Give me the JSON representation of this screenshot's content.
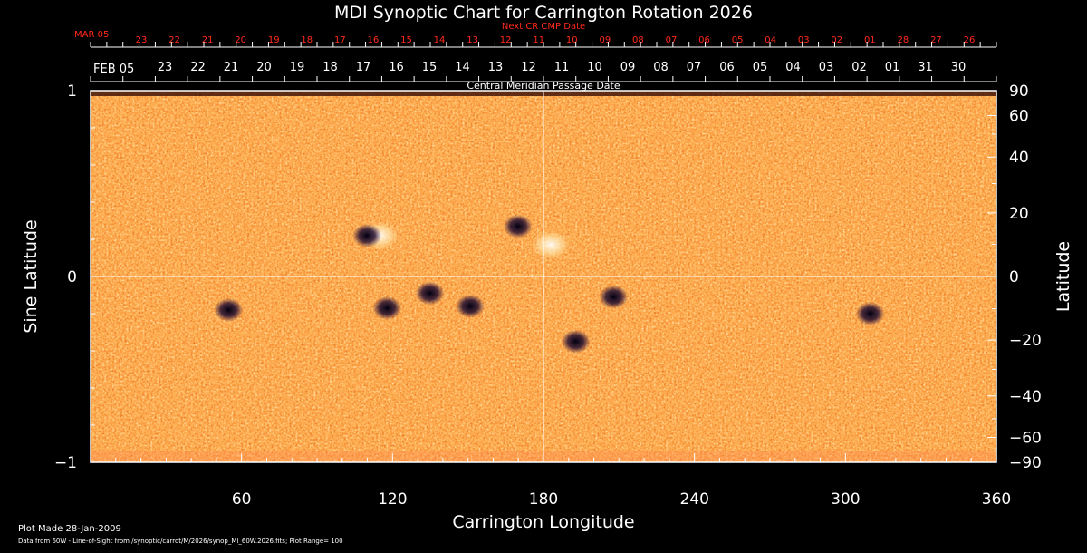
{
  "chart_data": {
    "type": "heatmap",
    "title": "MDI Synoptic Chart for Carrington Rotation 2026",
    "xlabel": "Carrington Longitude",
    "ylabel_left": "Sine Latitude",
    "ylabel_right": "Latitude",
    "xlim": [
      0,
      360
    ],
    "ylim": [
      -1,
      1
    ],
    "x_ticks": [
      "60",
      "120",
      "180",
      "240",
      "300",
      "360"
    ],
    "y_ticks_left": [
      "1",
      "0",
      "−1"
    ],
    "y_ticks_right": [
      "90",
      "60",
      "40",
      "20",
      "0",
      "−20",
      "−40",
      "−60",
      "−90"
    ],
    "y_ticks_right_values": [
      90,
      60,
      40,
      20,
      0,
      -20,
      -40,
      -60,
      -90
    ],
    "next_cr_label": "Next CR CMP Date",
    "next_cr_month": "MAR 05",
    "next_cr_dates": [
      "23",
      "22",
      "21",
      "20",
      "19",
      "18",
      "17",
      "16",
      "15",
      "14",
      "13",
      "12",
      "11",
      "10",
      "09",
      "08",
      "07",
      "06",
      "05",
      "04",
      "03",
      "02",
      "01",
      "28",
      "27",
      "26"
    ],
    "cmp_label": "Central Meridian Passage Date",
    "cmp_month": "FEB 05",
    "cmp_dates": [
      "23",
      "22",
      "21",
      "20",
      "19",
      "18",
      "17",
      "16",
      "15",
      "14",
      "13",
      "12",
      "11",
      "10",
      "09",
      "08",
      "07",
      "06",
      "05",
      "04",
      "03",
      "02",
      "01",
      "31",
      "30"
    ],
    "colors": {
      "background": "#000000",
      "field_mid": "#e84a0c",
      "field_positive": "#fff4cc",
      "field_negative": "#1a0830",
      "label_red": "#ff2a1a"
    },
    "regions": [
      {
        "lon": 112,
        "lat": 0.22,
        "polarity": "mixed"
      },
      {
        "lon": 172,
        "lat": 0.27,
        "polarity": "negative"
      },
      {
        "lon": 180,
        "lat": 0.17,
        "polarity": "positive"
      },
      {
        "lon": 57,
        "lat": -0.18,
        "polarity": "negative"
      },
      {
        "lon": 120,
        "lat": -0.17,
        "polarity": "negative"
      },
      {
        "lon": 137,
        "lat": -0.09,
        "polarity": "negative"
      },
      {
        "lon": 153,
        "lat": -0.16,
        "polarity": "negative"
      },
      {
        "lon": 195,
        "lat": -0.35,
        "polarity": "negative"
      },
      {
        "lon": 210,
        "lat": -0.11,
        "polarity": "negative"
      },
      {
        "lon": 312,
        "lat": -0.2,
        "polarity": "negative"
      }
    ]
  },
  "footer": {
    "plot_made": "Plot Made 28-Jan-2009",
    "data_from": "Data from 60W - Line-of-Sight from /synoptic/carrot/M/2026/synop_Ml_60W.2026.fits; Plot Range= 100"
  }
}
